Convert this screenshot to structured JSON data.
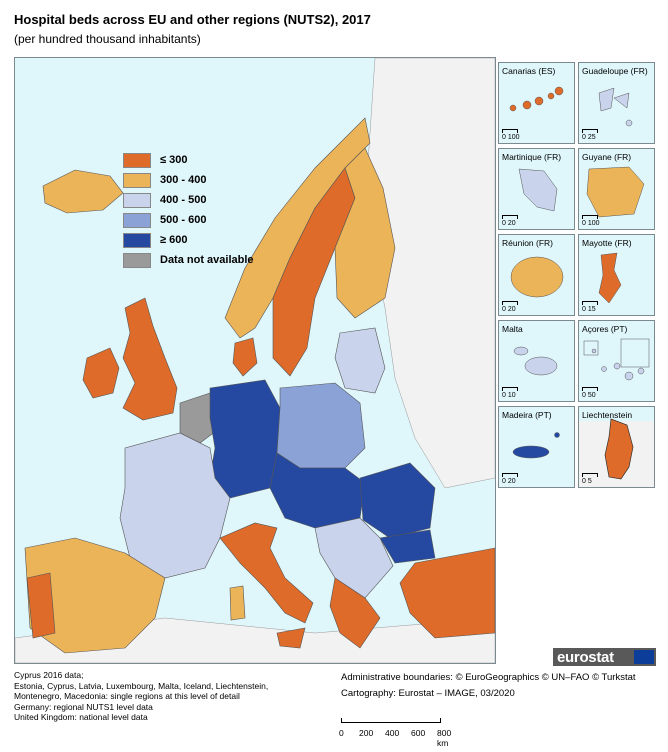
{
  "title": "Hospital beds across EU and other regions (NUTS2), 2017",
  "subtitle": "(per hundred thousand inhabitants)",
  "legend": {
    "items": [
      {
        "label": "≤ 300",
        "color": "#de6b2a"
      },
      {
        "label": "300 - 400",
        "color": "#ecb458"
      },
      {
        "label": "400 - 500",
        "color": "#c9d3eb"
      },
      {
        "label": "500 - 600",
        "color": "#8aa2d6"
      },
      {
        "label": "≥ 600",
        "color": "#2548a0"
      },
      {
        "label": "Data not available",
        "color": "#9a9a9a"
      }
    ]
  },
  "colors": {
    "sea": "#dff6fb",
    "non_eu_land": "#f2f2f2",
    "border": "#555555"
  },
  "insets": [
    {
      "label": "Canarias (ES)",
      "scale": "0   100"
    },
    {
      "label": "Guadeloupe (FR)",
      "scale": "0   25"
    },
    {
      "label": "Martinique (FR)",
      "scale": "0   20"
    },
    {
      "label": "Guyane (FR)",
      "scale": "0   100"
    },
    {
      "label": "Réunion (FR)",
      "scale": "0   20"
    },
    {
      "label": "Mayotte (FR)",
      "scale": "0   15"
    },
    {
      "label": "Malta",
      "scale": "0   10"
    },
    {
      "label": "Açores (PT)",
      "scale": "0   50"
    },
    {
      "label": "Madeira (PT)",
      "scale": "0   20"
    },
    {
      "label": "Liechtenstein",
      "scale": "0   5"
    }
  ],
  "footnotes": [
    "Cyprus 2016 data;",
    "Estonia, Cyprus, Latvia, Luxembourg, Malta, Iceland, Liechtenstein,",
    "Montenegro, Macedonia: single regions at this level of detail",
    "Germany: regional NUTS1 level data",
    "United Kingdom: national level data"
  ],
  "credits": {
    "boundaries": "Administrative boundaries: © EuroGeographics © UN–FAO © Turkstat",
    "cartography": "Cartography: Eurostat – IMAGE, 03/2020"
  },
  "brand": "eurostat",
  "scalebar": {
    "labels": [
      "0",
      "200",
      "400",
      "600",
      "800 km"
    ]
  }
}
